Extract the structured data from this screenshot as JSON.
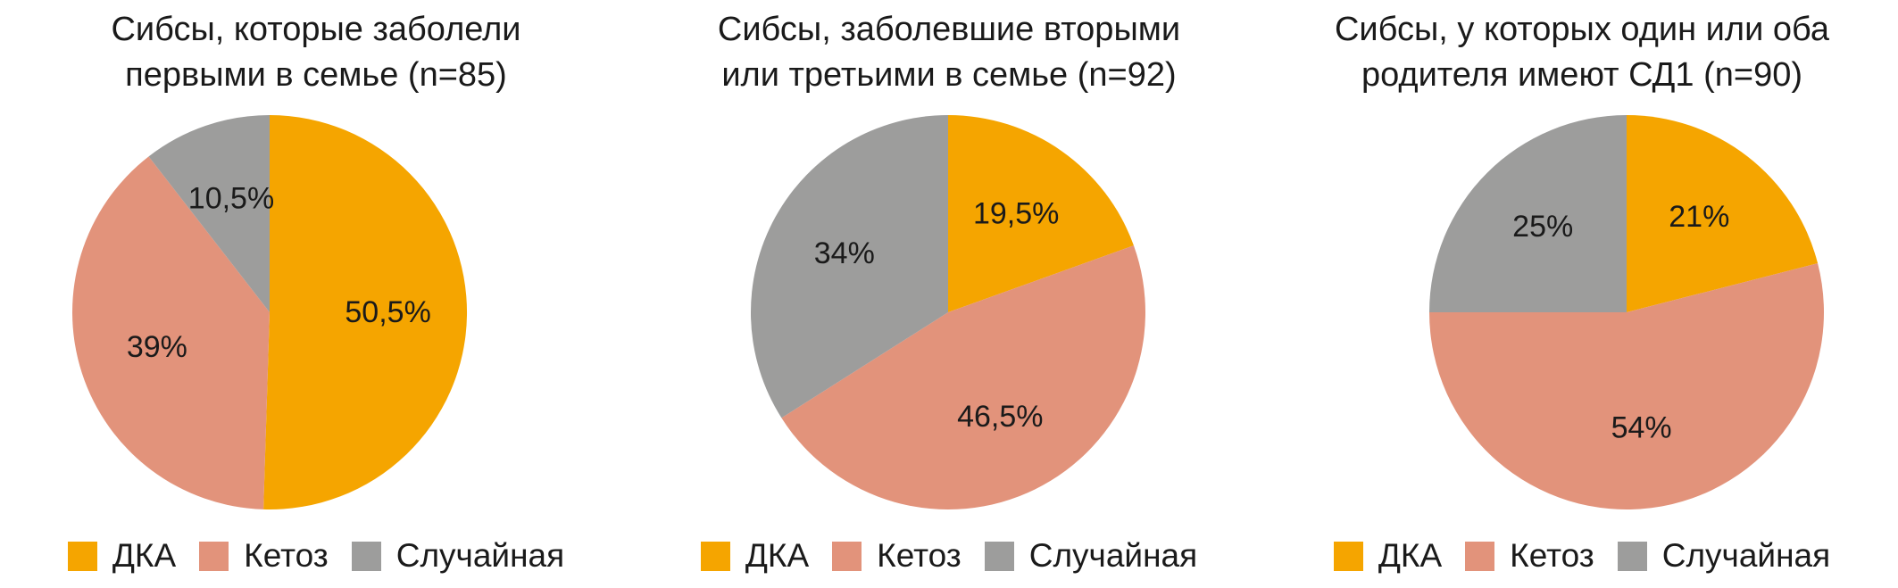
{
  "chart_data": [
    {
      "type": "pie",
      "title_lines": [
        "Сибсы, которые заболели",
        "первыми в семье (n=85)"
      ],
      "slices": [
        {
          "name": "ДКА",
          "value": 50.5,
          "label": "50,5%",
          "color": "#f5a500"
        },
        {
          "name": "Кетоз",
          "value": 39,
          "label": "39%",
          "color": "#e2937b"
        },
        {
          "name": "Случайная",
          "value": 10.5,
          "label": "10,5%",
          "color": "#9d9d9c"
        }
      ],
      "legend_position": "bottom"
    },
    {
      "type": "pie",
      "title_lines": [
        "Сибсы, заболевшие вторыми",
        "или третьими в семье (n=92)"
      ],
      "slices": [
        {
          "name": "ДКА",
          "value": 19.5,
          "label": "19,5%",
          "color": "#f5a500"
        },
        {
          "name": "Кетоз",
          "value": 46.5,
          "label": "46,5%",
          "color": "#e2937b"
        },
        {
          "name": "Случайная",
          "value": 34,
          "label": "34%",
          "color": "#9d9d9c"
        }
      ],
      "legend_position": "bottom"
    },
    {
      "type": "pie",
      "title_lines": [
        "Сибсы, у которых один или оба",
        "родителя имеют СД1 (n=90)"
      ],
      "slices": [
        {
          "name": "ДКА",
          "value": 21,
          "label": "21%",
          "color": "#f5a500"
        },
        {
          "name": "Кетоз",
          "value": 54,
          "label": "54%",
          "color": "#e2937b"
        },
        {
          "name": "Случайная",
          "value": 25,
          "label": "25%",
          "color": "#9d9d9c"
        }
      ],
      "legend_position": "bottom"
    }
  ],
  "legend": {
    "items": [
      {
        "label": "ДКА",
        "color": "#f5a500"
      },
      {
        "label": "Кетоз",
        "color": "#e2937b"
      },
      {
        "label": "Случайная",
        "color": "#9d9d9c"
      }
    ]
  }
}
